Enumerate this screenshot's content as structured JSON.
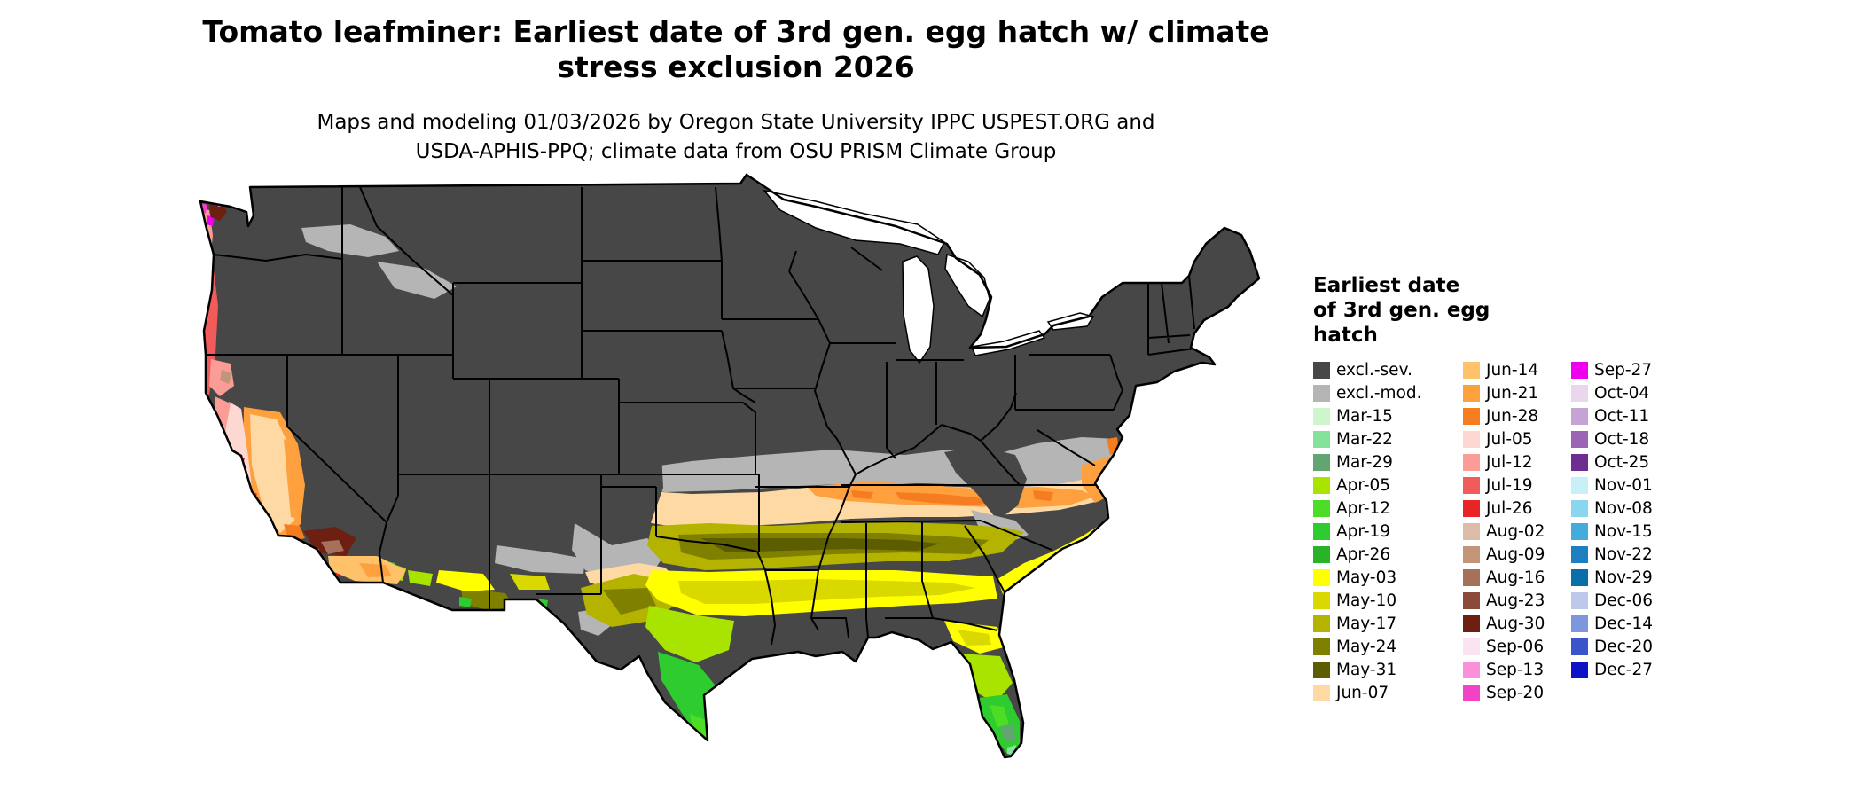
{
  "title": {
    "line1": "Tomato leafminer: Earliest date of 3rd gen. egg hatch w/ climate",
    "line2": "stress exclusion 2026"
  },
  "subtitle": {
    "line1": "Maps and modeling 01/03/2026 by Oregon State University IPPC USPEST.ORG and",
    "line2": "USDA-APHIS-PPQ; climate data from OSU PRISM Climate Group"
  },
  "legend": {
    "title_lines": [
      "Earliest date",
      "of 3rd gen. egg",
      "hatch"
    ],
    "columns": [
      [
        {
          "label": "excl.-sev.",
          "color": "#474747"
        },
        {
          "label": "excl.-mod.",
          "color": "#b5b5b5"
        },
        {
          "label": "Mar-15",
          "color": "#cdf6cd"
        },
        {
          "label": "Mar-22",
          "color": "#84e39b"
        },
        {
          "label": "Mar-29",
          "color": "#62a573"
        },
        {
          "label": "Apr-05",
          "color": "#a9e400"
        },
        {
          "label": "Apr-12",
          "color": "#4ddd26"
        },
        {
          "label": "Apr-19",
          "color": "#2ecc2e"
        },
        {
          "label": "Apr-26",
          "color": "#29b329"
        },
        {
          "label": "May-03",
          "color": "#ffff00"
        },
        {
          "label": "May-10",
          "color": "#d9d900"
        },
        {
          "label": "May-17",
          "color": "#b3b300"
        },
        {
          "label": "May-24",
          "color": "#7f7f00"
        },
        {
          "label": "May-31",
          "color": "#5c5c00"
        },
        {
          "label": "Jun-07",
          "color": "#ffd9a3"
        }
      ],
      [
        {
          "label": "Jun-14",
          "color": "#ffc169"
        },
        {
          "label": "Jun-21",
          "color": "#ffa03f"
        },
        {
          "label": "Jun-28",
          "color": "#f57d1f"
        },
        {
          "label": "Jul-05",
          "color": "#fdd7d2"
        },
        {
          "label": "Jul-12",
          "color": "#fb9c97"
        },
        {
          "label": "Jul-19",
          "color": "#f15b59"
        },
        {
          "label": "Jul-26",
          "color": "#e82426"
        },
        {
          "label": "Aug-02",
          "color": "#dcbca9"
        },
        {
          "label": "Aug-09",
          "color": "#c49479"
        },
        {
          "label": "Aug-16",
          "color": "#a6715a"
        },
        {
          "label": "Aug-23",
          "color": "#8c4a39"
        },
        {
          "label": "Aug-30",
          "color": "#6d2012"
        },
        {
          "label": "Sep-06",
          "color": "#fce3f1"
        },
        {
          "label": "Sep-13",
          "color": "#fa90da"
        },
        {
          "label": "Sep-20",
          "color": "#f342c6"
        }
      ],
      [
        {
          "label": "Sep-27",
          "color": "#ee00ee"
        },
        {
          "label": "Oct-04",
          "color": "#e9d8ec"
        },
        {
          "label": "Oct-11",
          "color": "#c5a3d5"
        },
        {
          "label": "Oct-18",
          "color": "#9b64b5"
        },
        {
          "label": "Oct-25",
          "color": "#6e2d90"
        },
        {
          "label": "Nov-01",
          "color": "#c9eff8"
        },
        {
          "label": "Nov-08",
          "color": "#8bd5ef"
        },
        {
          "label": "Nov-15",
          "color": "#45abdc"
        },
        {
          "label": "Nov-22",
          "color": "#1d7fc0"
        },
        {
          "label": "Nov-29",
          "color": "#0a6fa8"
        },
        {
          "label": "Dec-06",
          "color": "#bdc9e9"
        },
        {
          "label": "Dec-14",
          "color": "#7e96dc"
        },
        {
          "label": "Dec-20",
          "color": "#3a54cc"
        },
        {
          "label": "Dec-27",
          "color": "#0d13c4"
        }
      ]
    ]
  }
}
